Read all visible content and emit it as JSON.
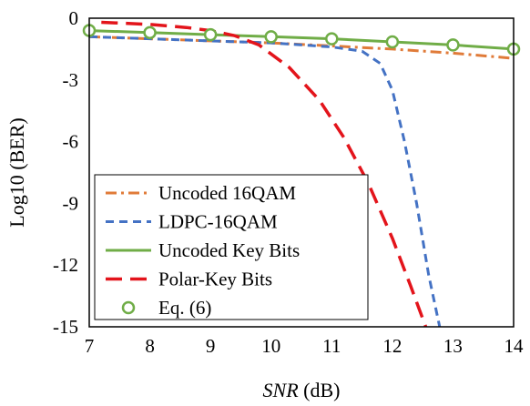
{
  "chart_data": {
    "type": "line",
    "title": "",
    "xlabel_italic": "SNR",
    "xlabel_rest": " (dB)",
    "ylabel": "Log10 (BER)",
    "xlim": [
      7,
      14
    ],
    "ylim": [
      -15,
      0
    ],
    "xticks": [
      7,
      8,
      9,
      10,
      11,
      12,
      13,
      14
    ],
    "yticks": [
      0,
      -3,
      -6,
      -9,
      -12,
      -15
    ],
    "grid": false,
    "legend_position": "bottom-left",
    "series": [
      {
        "name": "Uncoded 16QAM",
        "color": "#E07B39",
        "dash": "dashdot",
        "marker": "none",
        "x": [
          7,
          8,
          9,
          10,
          11,
          12,
          13,
          14
        ],
        "y": [
          -0.9,
          -1.0,
          -1.1,
          -1.2,
          -1.35,
          -1.5,
          -1.7,
          -1.95
        ]
      },
      {
        "name": "LDPC-16QAM",
        "color": "#4472C4",
        "dash": "dash",
        "marker": "none",
        "x": [
          7,
          8,
          9,
          10,
          11,
          11.5,
          11.8,
          12.0,
          12.2,
          12.4,
          12.6,
          12.78
        ],
        "y": [
          -0.9,
          -1.0,
          -1.1,
          -1.2,
          -1.4,
          -1.6,
          -2.2,
          -3.5,
          -6.0,
          -9.0,
          -12.5,
          -15.0
        ]
      },
      {
        "name": "Uncoded Key Bits",
        "color": "#70AD47",
        "dash": "solid",
        "marker": "none",
        "x": [
          7,
          8,
          9,
          10,
          11,
          12,
          13,
          14
        ],
        "y": [
          -0.6,
          -0.7,
          -0.8,
          -0.9,
          -1.0,
          -1.15,
          -1.3,
          -1.5
        ]
      },
      {
        "name": "Polar-Key Bits",
        "color": "#E3141B",
        "dash": "longdash",
        "marker": "none",
        "x": [
          7.2,
          8.0,
          8.6,
          9.0,
          9.4,
          9.8,
          10.3,
          10.8,
          11.2,
          11.6,
          12.0,
          12.3,
          12.55
        ],
        "y": [
          -0.2,
          -0.3,
          -0.45,
          -0.6,
          -0.85,
          -1.3,
          -2.4,
          -4.0,
          -5.8,
          -8.0,
          -10.7,
          -13.0,
          -15.0
        ]
      },
      {
        "name": "Eq. (6)",
        "color": "#70AD47",
        "dash": "none",
        "marker": "circle",
        "x": [
          7,
          8,
          9,
          10,
          11,
          12,
          13,
          14
        ],
        "y": [
          -0.6,
          -0.7,
          -0.8,
          -0.9,
          -1.0,
          -1.15,
          -1.3,
          -1.5
        ]
      }
    ]
  }
}
